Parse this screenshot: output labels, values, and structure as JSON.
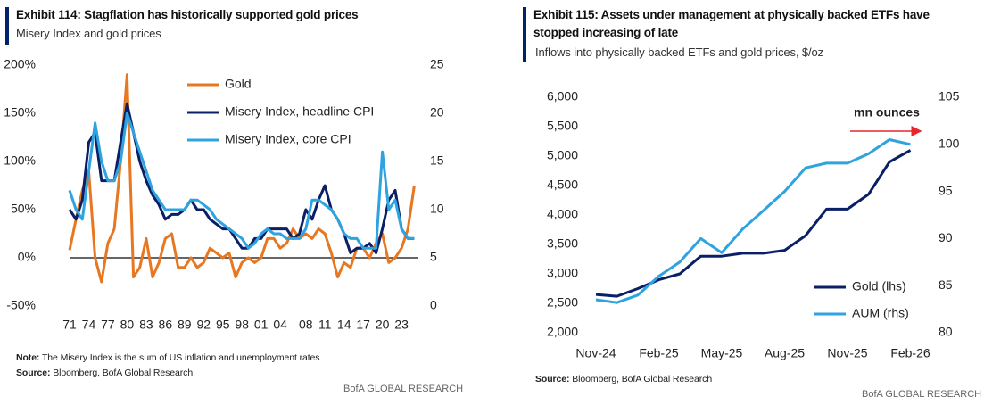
{
  "chart_data": [
    {
      "type": "line",
      "title": "Exhibit 114: Stagflation has historically supported gold prices",
      "subtitle": "Misery Index and gold prices",
      "x": [
        1971,
        1972,
        1973,
        1974,
        1975,
        1976,
        1977,
        1978,
        1979,
        1980,
        1981,
        1982,
        1983,
        1984,
        1985,
        1986,
        1987,
        1988,
        1989,
        1990,
        1991,
        1992,
        1993,
        1994,
        1995,
        1996,
        1997,
        1998,
        1999,
        2000,
        2001,
        2002,
        2003,
        2004,
        2005,
        2006,
        2007,
        2008,
        2009,
        2010,
        2011,
        2012,
        2013,
        2014,
        2015,
        2016,
        2017,
        2018,
        2019,
        2020,
        2021,
        2022,
        2023,
        2024,
        2025
      ],
      "series": [
        {
          "name": "Gold",
          "color": "#e87722",
          "values": [
            8,
            40,
            70,
            90,
            0,
            -25,
            15,
            30,
            100,
            190,
            -20,
            -10,
            20,
            -20,
            -5,
            20,
            25,
            -10,
            -10,
            0,
            -10,
            -5,
            10,
            5,
            0,
            5,
            -20,
            -5,
            0,
            -5,
            0,
            20,
            20,
            10,
            15,
            30,
            20,
            25,
            20,
            30,
            25,
            5,
            -20,
            -5,
            -10,
            10,
            10,
            0,
            15,
            25,
            -5,
            0,
            10,
            30,
            75
          ]
        },
        {
          "name": "Misery Index, headline CPI",
          "color": "#0a1f66",
          "axis": "y2",
          "values": [
            10,
            9,
            11,
            17,
            18,
            13,
            13,
            13,
            17,
            21,
            18,
            15,
            13,
            11.5,
            10.5,
            9,
            9.5,
            9.5,
            10,
            11,
            10,
            10,
            9,
            8.5,
            8,
            8,
            7,
            6,
            6,
            7,
            7,
            8,
            8,
            8,
            8,
            7,
            7.5,
            10,
            9,
            11,
            12.5,
            10,
            9,
            7.5,
            5.5,
            6,
            6,
            6.5,
            5.5,
            8,
            11,
            12,
            8,
            7,
            7
          ]
        },
        {
          "name": "Misery Index, core CPI",
          "color": "#2ea3e0",
          "axis": "y2",
          "values": [
            12,
            10,
            9,
            14,
            19,
            15,
            13,
            13,
            15,
            20,
            18,
            16,
            14,
            12,
            11,
            10,
            10,
            10,
            10,
            11,
            11,
            10.5,
            10,
            9,
            8.5,
            8,
            7.5,
            7,
            6,
            6.5,
            7.5,
            8,
            7.5,
            7.5,
            7,
            7,
            7,
            8,
            11,
            11,
            10.5,
            10,
            9,
            7.5,
            7,
            7,
            6,
            6,
            6,
            16,
            10,
            11,
            8,
            7,
            7
          ]
        }
      ],
      "xlim": [
        1971,
        2025.5
      ],
      "xticks": [
        {
          "value": 1971,
          "label": "71"
        },
        {
          "value": 1974,
          "label": "74"
        },
        {
          "value": 1977,
          "label": "77"
        },
        {
          "value": 1980,
          "label": "80"
        },
        {
          "value": 1983,
          "label": "83"
        },
        {
          "value": 1986,
          "label": "86"
        },
        {
          "value": 1989,
          "label": "89"
        },
        {
          "value": 1992,
          "label": "92"
        },
        {
          "value": 1995,
          "label": "95"
        },
        {
          "value": 1998,
          "label": "98"
        },
        {
          "value": 2001,
          "label": "01"
        },
        {
          "value": 2004,
          "label": "04"
        },
        {
          "value": 2008,
          "label": "08"
        },
        {
          "value": 2011,
          "label": "11"
        },
        {
          "value": 2014,
          "label": "14"
        },
        {
          "value": 2017,
          "label": "17"
        },
        {
          "value": 2020,
          "label": "20"
        },
        {
          "value": 2023,
          "label": "23"
        }
      ],
      "ylim": [
        -50,
        200
      ],
      "yticks": [
        {
          "value": -50,
          "label": "-50%"
        },
        {
          "value": 0,
          "label": "0%"
        },
        {
          "value": 50,
          "label": "50%"
        },
        {
          "value": 100,
          "label": "100%"
        },
        {
          "value": 150,
          "label": "150%"
        },
        {
          "value": 200,
          "label": "200%"
        }
      ],
      "y2lim": [
        0,
        25
      ],
      "y2ticks": [
        0,
        5,
        10,
        15,
        20,
        25
      ],
      "zero_line": true,
      "legend": "upper center",
      "note_label": "Note:",
      "note": "The Misery Index is the sum of US inflation and unemployment rates",
      "source_label": "Source:",
      "source": "Bloomberg, BofA Global Research",
      "branding": "BofA GLOBAL RESEARCH"
    },
    {
      "type": "line",
      "title": "Exhibit 115: Assets under management at physically backed ETFs have stopped increasing of late",
      "subtitle": "Inflows into physically backed ETFs and gold prices, $/oz",
      "x": [
        "2024-11",
        "2024-12",
        "2025-01",
        "2025-02",
        "2025-03",
        "2025-04",
        "2025-05",
        "2025-06",
        "2025-07",
        "2025-08",
        "2025-09",
        "2025-10",
        "2025-11",
        "2025-12",
        "2026-01",
        "2026-02"
      ],
      "series": [
        {
          "name": "Gold (lhs)",
          "color": "#0a1f66",
          "values": [
            2650,
            2620,
            2750,
            2900,
            3000,
            3300,
            3300,
            3350,
            3350,
            3400,
            3650,
            4100,
            4100,
            4350,
            4900,
            5100
          ]
        },
        {
          "name": "AUM (rhs)",
          "color": "#2ea3e0",
          "axis": "y2",
          "values": [
            83.5,
            83.2,
            84,
            86,
            87.5,
            90,
            88.5,
            91,
            93,
            95,
            97.5,
            98,
            98,
            99,
            100.5,
            100
          ]
        }
      ],
      "xlim": [
        "2024-11",
        "2026-03"
      ],
      "xticks": [
        {
          "value": "2024-11",
          "label": "Nov-24"
        },
        {
          "value": "2025-02",
          "label": "Feb-25"
        },
        {
          "value": "2025-05",
          "label": "May-25"
        },
        {
          "value": "2025-08",
          "label": "Aug-25"
        },
        {
          "value": "2025-11",
          "label": "Nov-25"
        },
        {
          "value": "2026-02",
          "label": "Feb-26"
        }
      ],
      "ylim": [
        2000,
        6000
      ],
      "yticks": [
        {
          "value": 2000,
          "label": "2,000"
        },
        {
          "value": 2500,
          "label": "2,500"
        },
        {
          "value": 3000,
          "label": "3,000"
        },
        {
          "value": 3500,
          "label": "3,500"
        },
        {
          "value": 4000,
          "label": "4,000"
        },
        {
          "value": 4500,
          "label": "4,500"
        },
        {
          "value": 5000,
          "label": "5,000"
        },
        {
          "value": 5500,
          "label": "5,500"
        },
        {
          "value": 6000,
          "label": "6,000"
        }
      ],
      "y2lim": [
        80,
        105
      ],
      "y2ticks": [
        80,
        85,
        90,
        95,
        100,
        105
      ],
      "annotation": "mn ounces",
      "legend": "lower right",
      "source_label": "Source:",
      "source": "Bloomberg, BofA Global Research",
      "branding": "BofA GLOBAL RESEARCH"
    }
  ]
}
